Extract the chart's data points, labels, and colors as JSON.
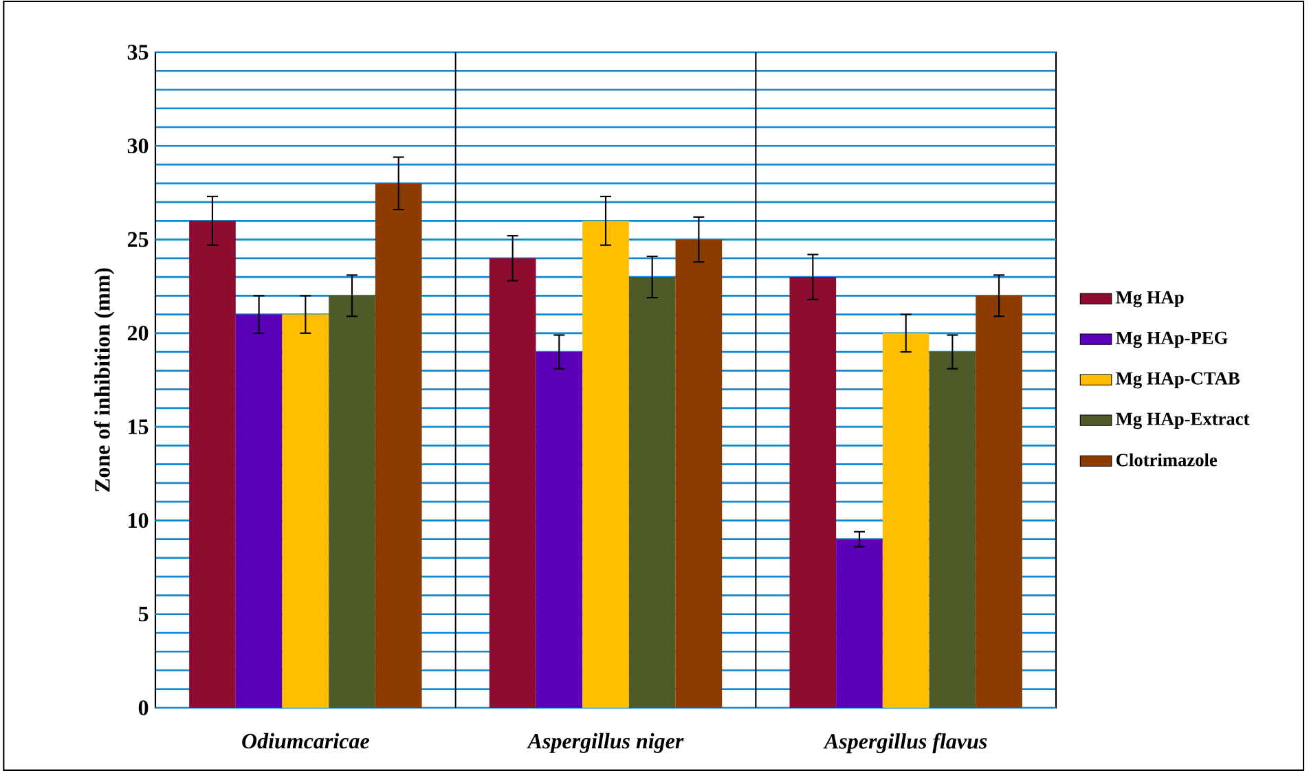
{
  "chart_data": {
    "type": "bar",
    "ylabel": "Zone of inhibition (mm)",
    "categories": [
      "*Odiumcaricae*",
      "*Aspergillus niger*",
      "*Aspergillus flavus*"
    ],
    "series": [
      {
        "name": "Mg HAp",
        "color": "#8e0c2f",
        "values": [
          26,
          24,
          23
        ],
        "errors": [
          1.3,
          1.2,
          1.2
        ]
      },
      {
        "name": "Mg HAp-PEG",
        "color": "#5a00b8",
        "values": [
          21,
          19,
          9
        ],
        "errors": [
          1,
          0.9,
          0.4
        ]
      },
      {
        "name": "Mg HAp-CTAB",
        "color": "#ffbf00",
        "values": [
          21,
          26,
          20
        ],
        "errors": [
          1,
          1.3,
          1
        ]
      },
      {
        "name": "Mg HAp-Extract",
        "color": "#4e5a28",
        "values": [
          22,
          23,
          19
        ],
        "errors": [
          1.1,
          1.1,
          0.9
        ]
      },
      {
        "name": "Clotrimazole",
        "color": "#8c3c00",
        "values": [
          28,
          25,
          22
        ],
        "errors": [
          1.4,
          1.2,
          1.1
        ]
      }
    ],
    "ylim": [
      0,
      35
    ],
    "yticks": [
      0,
      {
        "value": 1,
        "label": null
      },
      {
        "value": 2,
        "label": null
      },
      {
        "value": 3,
        "label": null
      },
      {
        "value": 4,
        "label": null
      },
      5,
      {
        "value": 6,
        "label": null
      },
      {
        "value": 7,
        "label": null
      },
      {
        "value": 8,
        "label": null
      },
      {
        "value": 9,
        "label": null
      },
      10,
      {
        "value": 11,
        "label": null
      },
      {
        "value": 12,
        "label": null
      },
      {
        "value": 13,
        "label": null
      },
      {
        "value": 14,
        "label": null
      },
      15,
      {
        "value": 16,
        "label": null
      },
      {
        "value": 17,
        "label": null
      },
      {
        "value": 18,
        "label": null
      },
      {
        "value": 19,
        "label": null
      },
      20,
      {
        "value": 21,
        "label": null
      },
      {
        "value": 22,
        "label": null
      },
      {
        "value": 23,
        "label": null
      },
      {
        "value": 24,
        "label": null
      },
      25,
      {
        "value": 26,
        "label": null
      },
      {
        "value": 27,
        "label": null
      },
      {
        "value": 28,
        "label": null
      },
      {
        "value": 29,
        "label": null
      },
      30,
      {
        "value": 31,
        "label": null
      },
      {
        "value": 32,
        "label": null
      },
      {
        "value": 33,
        "label": null
      },
      {
        "value": 34,
        "label": null
      },
      35
    ],
    "grid": true,
    "legend": "right"
  }
}
